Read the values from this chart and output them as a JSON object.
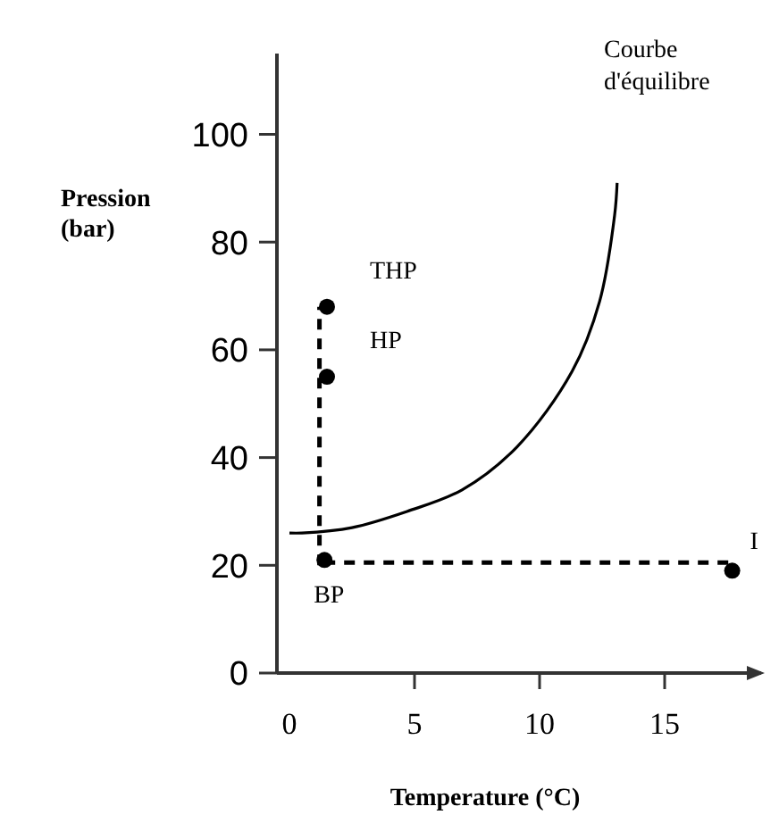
{
  "chart_data": {
    "type": "line",
    "xlabel": "Temperature (°C)",
    "ylabel": "Pression (bar)",
    "xlim": [
      -0.5,
      19
    ],
    "ylim": [
      0,
      115
    ],
    "xticks": [
      0,
      5,
      10,
      15
    ],
    "yticks": [
      0,
      20,
      40,
      60,
      80,
      100
    ],
    "grid": false,
    "series": [
      {
        "color": "#000000",
        "line_style": "solid",
        "marker": "none",
        "x": [
          0,
          0.5,
          2.5,
          4.7,
          6.9,
          9.1,
          11.3,
          12.4,
          13.0,
          13.1
        ],
        "values": [
          26,
          26,
          27,
          30,
          34,
          42,
          56,
          69,
          85,
          91
        ]
      },
      {
        "color": "#000000",
        "line_style": "dashed",
        "marker": "none",
        "x": [
          1.2,
          1.2
        ],
        "values": [
          20,
          68
        ]
      },
      {
        "color": "#000000",
        "line_style": "dashed",
        "marker": "none",
        "x": [
          1.4,
          17.7
        ],
        "values": [
          20.5,
          20.5
        ]
      },
      {
        "type": "scatter",
        "color": "#000000",
        "marker": "circle",
        "x": [
          1.4,
          1.5,
          1.5,
          17.7
        ],
        "values": [
          21,
          55,
          68,
          19
        ]
      }
    ],
    "annotations": [
      {
        "text": "BP",
        "x": 1.4,
        "y": 21
      },
      {
        "text": "HP",
        "x": 1.5,
        "y": 55
      },
      {
        "text": "THP",
        "x": 1.5,
        "y": 68
      },
      {
        "text": "I",
        "x": 17.7,
        "y": 19
      },
      "Courbe d'équilibre"
    ]
  }
}
